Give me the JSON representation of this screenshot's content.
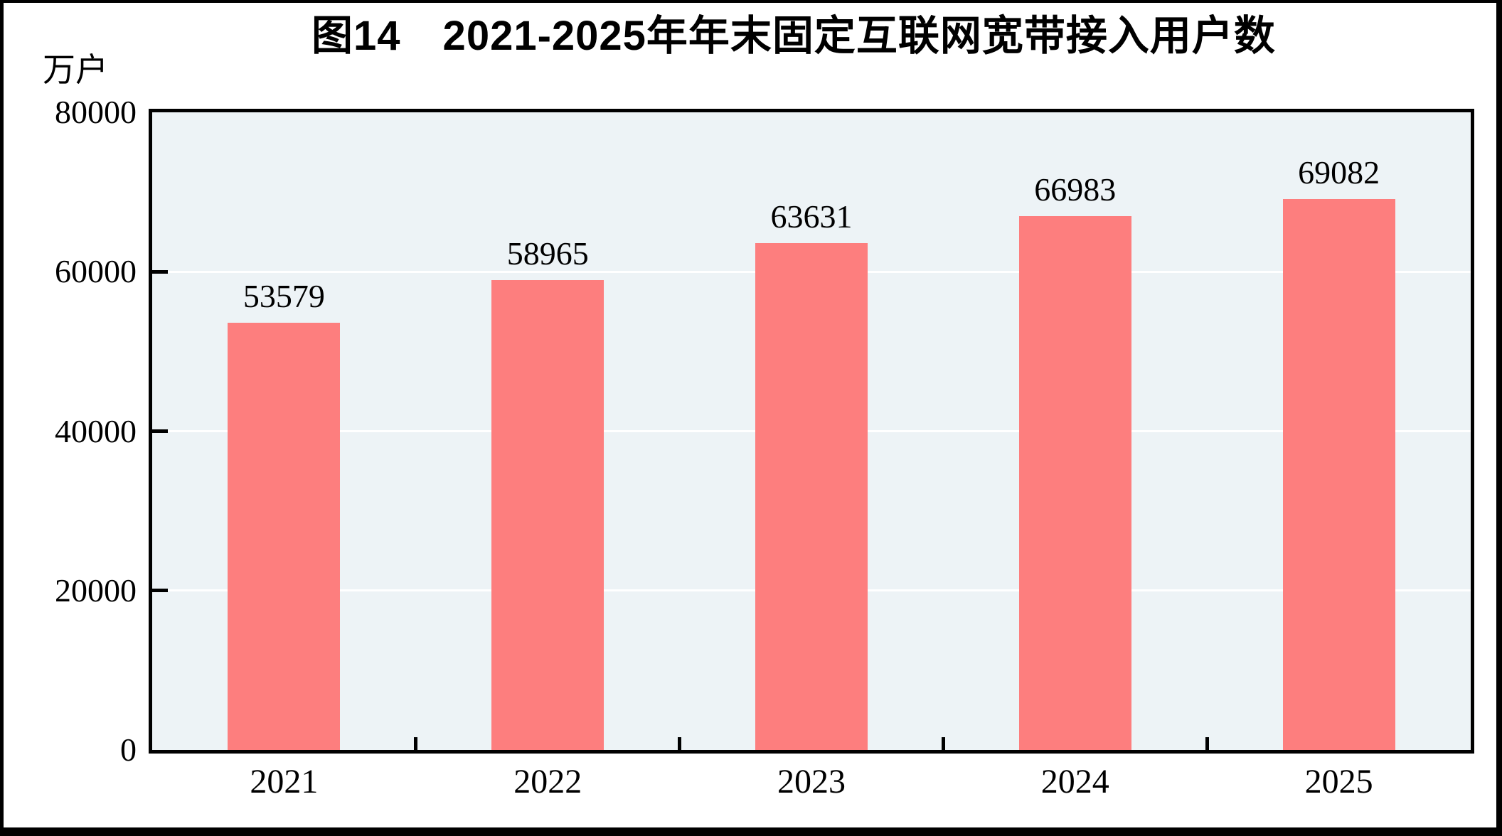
{
  "figure": {
    "title": "图14　2021-2025年年末固定互联网宽带接入用户数",
    "y_axis_unit": "万户",
    "y_ticks": [
      "80000",
      "60000",
      "40000",
      "20000",
      "0"
    ]
  },
  "chart_data": {
    "type": "bar",
    "title": "图14 2021-2025年年末固定互联网宽带接入用户数",
    "categories": [
      "2021",
      "2022",
      "2023",
      "2024",
      "2025"
    ],
    "values": [
      53579,
      58965,
      63631,
      66983,
      69082
    ],
    "data_labels": [
      53579,
      58965,
      63631,
      66983,
      69082
    ],
    "xlabel": "",
    "ylabel": "万户",
    "ylim": [
      0,
      80000
    ],
    "y_tick_step": 20000,
    "grid": "horizontal",
    "legend": "none",
    "colors": {
      "bar_fill": "#FD7E7E",
      "plot_background": "#EDF3F6",
      "gridline": "#FFFFFF",
      "axis_border": "#000000",
      "text": "#000000"
    }
  }
}
